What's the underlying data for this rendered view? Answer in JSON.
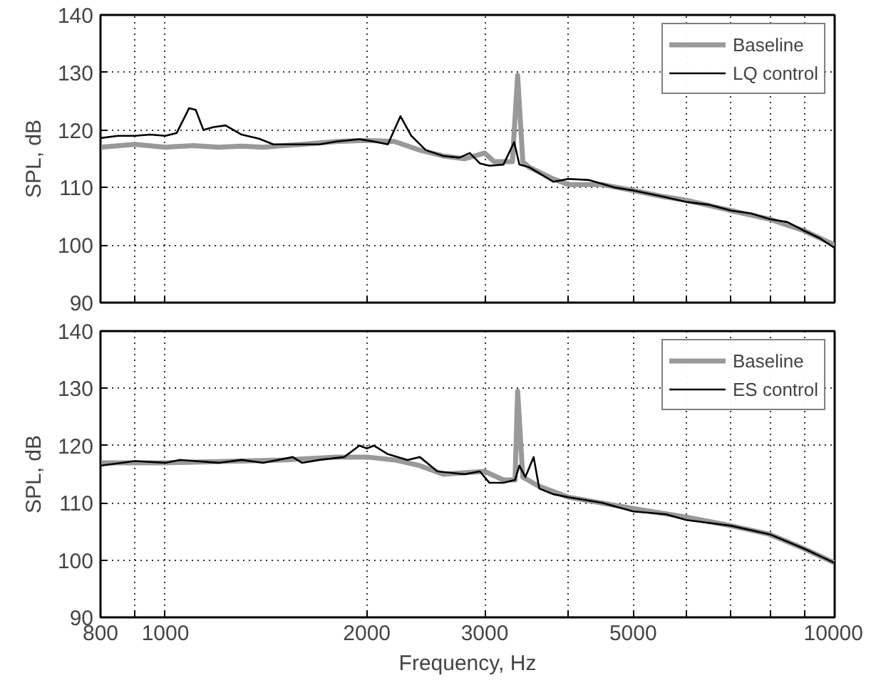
{
  "chart_data": [
    {
      "type": "line",
      "ylabel": "SPL, dB",
      "log": "x",
      "grid": true,
      "legend": "top right",
      "tick_labels": "y",
      "xlim": [
        800,
        10000
      ],
      "ylim": [
        90,
        140
      ],
      "xticks": [
        {
          "value": 800,
          "label": null
        },
        {
          "value": 900,
          "label": null
        },
        {
          "value": 1000,
          "label": null
        },
        {
          "value": 2000,
          "label": null
        },
        {
          "value": 3000,
          "label": null
        },
        {
          "value": 4000,
          "label": null
        },
        {
          "value": 5000,
          "label": null
        },
        {
          "value": 6000,
          "label": null
        },
        {
          "value": 7000,
          "label": null
        },
        {
          "value": 8000,
          "label": null
        },
        {
          "value": 9000,
          "label": null
        },
        {
          "value": 10000,
          "label": null
        }
      ],
      "yticks": [
        90,
        100,
        110,
        120,
        130,
        140
      ],
      "series": [
        {
          "name": "Baseline",
          "color": "#999999",
          "x": [
            800,
            900,
            1000,
            1100,
            1200,
            1300,
            1400,
            1500,
            1600,
            1800,
            2000,
            2200,
            2400,
            2600,
            2800,
            3000,
            3100,
            3300,
            3360,
            3420,
            3500,
            3800,
            4000,
            4500,
            5000,
            5500,
            6000,
            7000,
            8000,
            9000,
            10000
          ],
          "values": [
            117,
            117.5,
            117,
            117.3,
            117,
            117.2,
            117,
            117.3,
            117.5,
            118,
            118.2,
            118,
            116.5,
            115.5,
            115,
            116,
            114.5,
            114.5,
            129.5,
            114.5,
            113.5,
            111.5,
            110.5,
            110.5,
            109.5,
            108.5,
            107.8,
            106,
            104.5,
            102.5,
            100
          ]
        },
        {
          "name": "LQ control",
          "color": "#000000",
          "x": [
            800,
            850,
            900,
            950,
            1000,
            1040,
            1085,
            1110,
            1140,
            1180,
            1230,
            1300,
            1380,
            1450,
            1550,
            1700,
            1800,
            1950,
            2050,
            2150,
            2245,
            2330,
            2450,
            2600,
            2750,
            2850,
            2950,
            3050,
            3200,
            3320,
            3380,
            3500,
            3800,
            4000,
            4300,
            4700,
            5000,
            5500,
            6000,
            6500,
            7000,
            7500,
            8000,
            8500,
            9000,
            9500,
            10000
          ],
          "values": [
            118.6,
            119,
            119,
            119.2,
            119,
            119.5,
            123.8,
            123.5,
            120,
            120.5,
            120.8,
            119.2,
            118.5,
            117.5,
            117.5,
            117.5,
            118,
            118.4,
            118,
            117.5,
            122.4,
            119,
            116.5,
            115.5,
            115.2,
            116,
            114.2,
            113.8,
            114,
            117.9,
            114,
            113.5,
            111,
            111.5,
            111.3,
            110,
            109.5,
            108.5,
            107.5,
            107,
            106,
            105.5,
            104.5,
            104,
            102.5,
            101.2,
            99.5
          ]
        }
      ]
    },
    {
      "type": "line",
      "ylabel": "SPL, dB",
      "xlabel": "Frequency, Hz",
      "log": "x",
      "grid": true,
      "legend": "top right",
      "xlim": [
        800,
        10000
      ],
      "ylim": [
        90,
        140
      ],
      "xticks": [
        800,
        {
          "value": 900,
          "label": null
        },
        1000,
        2000,
        3000,
        {
          "value": 4000,
          "label": null
        },
        5000,
        {
          "value": 6000,
          "label": null
        },
        {
          "value": 7000,
          "label": null
        },
        {
          "value": 8000,
          "label": null
        },
        {
          "value": 9000,
          "label": null
        },
        10000
      ],
      "yticks": [
        90,
        100,
        110,
        120,
        130,
        140
      ],
      "series": [
        {
          "name": "Baseline",
          "color": "#999999",
          "x": [
            800,
            1000,
            1500,
            1800,
            2000,
            2200,
            2400,
            2600,
            3000,
            3200,
            3330,
            3360,
            3420,
            3600,
            4000,
            5000,
            6000,
            7000,
            8000,
            9000,
            10000
          ],
          "values": [
            117,
            117,
            117.5,
            118,
            118,
            117.5,
            116.5,
            115,
            115.5,
            114,
            114,
            129.5,
            114.5,
            113,
            111,
            109,
            107.5,
            106,
            104.5,
            102,
            99.5
          ]
        },
        {
          "name": "ES control",
          "color": "#000000",
          "x": [
            800,
            900,
            1000,
            1050,
            1200,
            1300,
            1400,
            1550,
            1600,
            1700,
            1850,
            1950,
            2000,
            2050,
            2150,
            2300,
            2400,
            2550,
            2800,
            2950,
            3050,
            3200,
            3330,
            3380,
            3450,
            3550,
            3620,
            3800,
            4000,
            4500,
            5000,
            5600,
            6000,
            7000,
            8000,
            9000,
            10000
          ],
          "values": [
            116.5,
            117.3,
            117,
            117.5,
            117,
            117.5,
            117,
            118,
            117,
            117.5,
            118,
            120,
            119.5,
            120,
            118.5,
            117.5,
            118,
            115.5,
            115,
            115.5,
            113.5,
            113.5,
            114,
            116.5,
            114.5,
            118,
            112.5,
            111.5,
            111,
            110,
            108.5,
            108,
            107,
            106,
            104.5,
            102,
            99.5
          ]
        }
      ]
    }
  ]
}
